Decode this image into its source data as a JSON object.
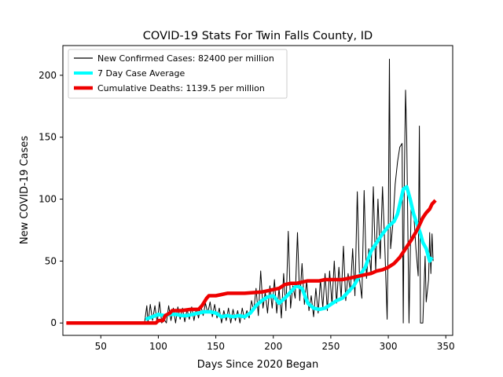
{
  "chart_data": {
    "type": "line",
    "title": "COVID-19 Stats For Twin Falls County, ID",
    "xlabel": "Days Since 2020 Began",
    "ylabel": "New COVID-19 Cases",
    "xlim": [
      17,
      356
    ],
    "ylim": [
      -10,
      224
    ],
    "xticks": [
      50,
      100,
      150,
      200,
      250,
      300,
      350
    ],
    "yticks": [
      0,
      50,
      100,
      150,
      200
    ],
    "grid": false,
    "legend_position": "top-left",
    "series": [
      {
        "name": "New Confirmed Cases: 82400 per million",
        "color": "#000000",
        "style": "thin",
        "points": [
          [
            20,
            0
          ],
          [
            40,
            0
          ],
          [
            60,
            0
          ],
          [
            80,
            0
          ],
          [
            88,
            0
          ],
          [
            90,
            14
          ],
          [
            91,
            0
          ],
          [
            93,
            15
          ],
          [
            95,
            2
          ],
          [
            97,
            14
          ],
          [
            99,
            0
          ],
          [
            101,
            17
          ],
          [
            103,
            0
          ],
          [
            105,
            3
          ],
          [
            107,
            0
          ],
          [
            109,
            14
          ],
          [
            111,
            2
          ],
          [
            113,
            12
          ],
          [
            115,
            0
          ],
          [
            117,
            13
          ],
          [
            119,
            3
          ],
          [
            121,
            12
          ],
          [
            123,
            1
          ],
          [
            125,
            11
          ],
          [
            127,
            3
          ],
          [
            129,
            13
          ],
          [
            131,
            2
          ],
          [
            133,
            12
          ],
          [
            135,
            4
          ],
          [
            137,
            14
          ],
          [
            139,
            6
          ],
          [
            141,
            16
          ],
          [
            143,
            8
          ],
          [
            145,
            17
          ],
          [
            147,
            5
          ],
          [
            149,
            15
          ],
          [
            151,
            4
          ],
          [
            153,
            12
          ],
          [
            155,
            0
          ],
          [
            157,
            10
          ],
          [
            159,
            2
          ],
          [
            161,
            12
          ],
          [
            163,
            0
          ],
          [
            165,
            11
          ],
          [
            167,
            2
          ],
          [
            169,
            10
          ],
          [
            171,
            0
          ],
          [
            173,
            12
          ],
          [
            175,
            3
          ],
          [
            177,
            10
          ],
          [
            179,
            4
          ],
          [
            181,
            18
          ],
          [
            183,
            10
          ],
          [
            185,
            28
          ],
          [
            187,
            6
          ],
          [
            189,
            42
          ],
          [
            191,
            12
          ],
          [
            193,
            25
          ],
          [
            195,
            8
          ],
          [
            197,
            30
          ],
          [
            199,
            12
          ],
          [
            201,
            35
          ],
          [
            203,
            8
          ],
          [
            205,
            28
          ],
          [
            207,
            4
          ],
          [
            209,
            40
          ],
          [
            211,
            10
          ],
          [
            213,
            74
          ],
          [
            215,
            12
          ],
          [
            217,
            30
          ],
          [
            219,
            20
          ],
          [
            221,
            73
          ],
          [
            223,
            18
          ],
          [
            225,
            48
          ],
          [
            227,
            15
          ],
          [
            229,
            34
          ],
          [
            231,
            10
          ],
          [
            233,
            22
          ],
          [
            235,
            5
          ],
          [
            237,
            28
          ],
          [
            239,
            8
          ],
          [
            241,
            35
          ],
          [
            243,
            12
          ],
          [
            245,
            40
          ],
          [
            247,
            10
          ],
          [
            249,
            42
          ],
          [
            251,
            15
          ],
          [
            253,
            50
          ],
          [
            255,
            16
          ],
          [
            257,
            45
          ],
          [
            259,
            20
          ],
          [
            261,
            62
          ],
          [
            263,
            18
          ],
          [
            265,
            40
          ],
          [
            267,
            25
          ],
          [
            269,
            60
          ],
          [
            271,
            22
          ],
          [
            273,
            106
          ],
          [
            275,
            35
          ],
          [
            277,
            20
          ],
          [
            279,
            107
          ],
          [
            281,
            36
          ],
          [
            283,
            60
          ],
          [
            285,
            40
          ],
          [
            287,
            110
          ],
          [
            289,
            42
          ],
          [
            291,
            100
          ],
          [
            293,
            52
          ],
          [
            295,
            110
          ],
          [
            297,
            60
          ],
          [
            299,
            3
          ],
          [
            300,
            80
          ],
          [
            301,
            213
          ],
          [
            302,
            60
          ],
          [
            304,
            80
          ],
          [
            306,
            112
          ],
          [
            308,
            130
          ],
          [
            310,
            142
          ],
          [
            312,
            145
          ],
          [
            313,
            0
          ],
          [
            314,
            120
          ],
          [
            315,
            188
          ],
          [
            316,
            150
          ],
          [
            318,
            0
          ],
          [
            320,
            100
          ],
          [
            322,
            90
          ],
          [
            324,
            60
          ],
          [
            326,
            38
          ],
          [
            327,
            159
          ],
          [
            328,
            0
          ],
          [
            330,
            0
          ],
          [
            332,
            54
          ],
          [
            333,
            17
          ],
          [
            335,
            35
          ],
          [
            336,
            73
          ],
          [
            337,
            40
          ],
          [
            338,
            72
          ],
          [
            339,
            50
          ]
        ]
      },
      {
        "name": "7 Day Case Average",
        "color": "#00ffff",
        "style": "medium",
        "points": [
          [
            89,
            3
          ],
          [
            95,
            5
          ],
          [
            100,
            7
          ],
          [
            105,
            6
          ],
          [
            110,
            7
          ],
          [
            115,
            7
          ],
          [
            120,
            6
          ],
          [
            125,
            6
          ],
          [
            130,
            7
          ],
          [
            135,
            8
          ],
          [
            140,
            9
          ],
          [
            145,
            9
          ],
          [
            150,
            8
          ],
          [
            155,
            5
          ],
          [
            160,
            6
          ],
          [
            165,
            5
          ],
          [
            170,
            6
          ],
          [
            175,
            5
          ],
          [
            180,
            8
          ],
          [
            185,
            14
          ],
          [
            190,
            18
          ],
          [
            195,
            21
          ],
          [
            200,
            22
          ],
          [
            205,
            16
          ],
          [
            210,
            20
          ],
          [
            215,
            25
          ],
          [
            220,
            30
          ],
          [
            225,
            28
          ],
          [
            230,
            16
          ],
          [
            235,
            12
          ],
          [
            240,
            11
          ],
          [
            245,
            12
          ],
          [
            250,
            15
          ],
          [
            255,
            18
          ],
          [
            260,
            20
          ],
          [
            265,
            25
          ],
          [
            270,
            30
          ],
          [
            275,
            38
          ],
          [
            280,
            45
          ],
          [
            285,
            58
          ],
          [
            290,
            65
          ],
          [
            295,
            72
          ],
          [
            300,
            78
          ],
          [
            305,
            82
          ],
          [
            308,
            88
          ],
          [
            311,
            100
          ],
          [
            313,
            108
          ],
          [
            316,
            110
          ],
          [
            319,
            100
          ],
          [
            322,
            88
          ],
          [
            325,
            80
          ],
          [
            328,
            72
          ],
          [
            330,
            65
          ],
          [
            333,
            60
          ],
          [
            336,
            50
          ],
          [
            338,
            53
          ]
        ]
      },
      {
        "name": "Cumulative Deaths: 1139.5 per million",
        "color": "#ee0000",
        "style": "thick",
        "points": [
          [
            20,
            0
          ],
          [
            40,
            0
          ],
          [
            60,
            0
          ],
          [
            80,
            0
          ],
          [
            98,
            0
          ],
          [
            100,
            2
          ],
          [
            104,
            2
          ],
          [
            106,
            6
          ],
          [
            110,
            8
          ],
          [
            112,
            10
          ],
          [
            120,
            10
          ],
          [
            128,
            11
          ],
          [
            135,
            11
          ],
          [
            138,
            14
          ],
          [
            140,
            17
          ],
          [
            142,
            20
          ],
          [
            144,
            22
          ],
          [
            150,
            22
          ],
          [
            155,
            23
          ],
          [
            160,
            24
          ],
          [
            175,
            24
          ],
          [
            190,
            25
          ],
          [
            200,
            27
          ],
          [
            205,
            28
          ],
          [
            210,
            31
          ],
          [
            215,
            32
          ],
          [
            220,
            32
          ],
          [
            225,
            33
          ],
          [
            230,
            34
          ],
          [
            240,
            34
          ],
          [
            245,
            35
          ],
          [
            260,
            35
          ],
          [
            265,
            36
          ],
          [
            270,
            37
          ],
          [
            275,
            38
          ],
          [
            280,
            39
          ],
          [
            285,
            40
          ],
          [
            290,
            42
          ],
          [
            295,
            43
          ],
          [
            300,
            45
          ],
          [
            305,
            48
          ],
          [
            310,
            53
          ],
          [
            315,
            60
          ],
          [
            320,
            67
          ],
          [
            325,
            75
          ],
          [
            330,
            85
          ],
          [
            333,
            89
          ],
          [
            336,
            92
          ],
          [
            338,
            96
          ],
          [
            341,
            99
          ]
        ]
      }
    ]
  }
}
